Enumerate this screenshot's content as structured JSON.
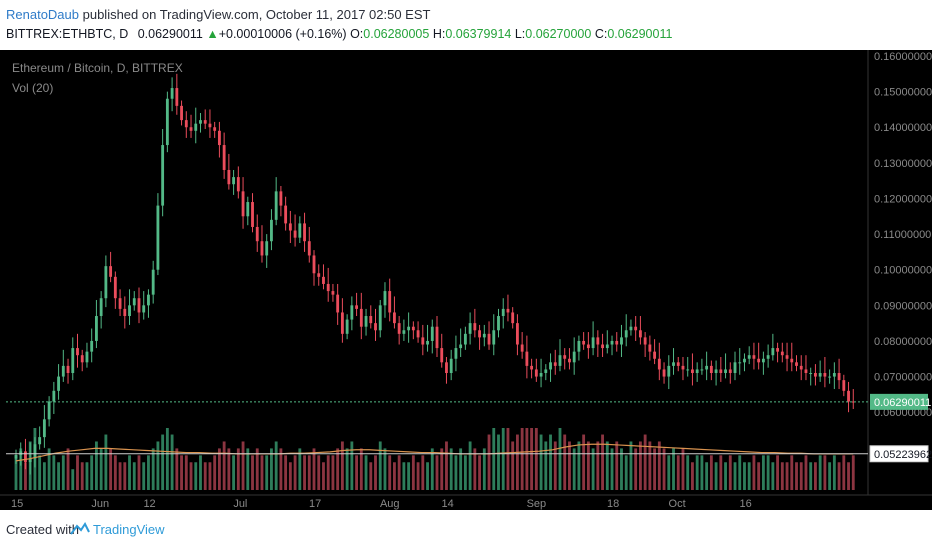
{
  "publish": {
    "author": "RenatoDaub",
    "text": " published on TradingView.com, October 11, 2017 02:50 EST"
  },
  "quote": {
    "symbol": "BITTREX:ETHBTC, D",
    "last": "0.06290011",
    "change": "+0.00010006 (+0.16%)",
    "open_label": "O:",
    "open": "0.06280005",
    "high_label": "H:",
    "high": "0.06379914",
    "low_label": "L:",
    "low": "0.06270000",
    "close_label": "C:",
    "close": "0.06290011",
    "arrow": "▲"
  },
  "legend": {
    "title": "Ethereum / Bitcoin, D, BITTREX",
    "volume": "Vol (20)"
  },
  "footer": {
    "created_with": "Created with",
    "brand": "TradingView"
  },
  "colors": {
    "background": "#000000",
    "up": "#53b987",
    "down": "#eb4d5c",
    "up_volume": "#2e7d5b",
    "down_volume": "#8c3541",
    "ma_line": "#d9934f",
    "last_price_line": "#53b987",
    "axis_text": "#8a8a8a"
  },
  "chart_data": {
    "type": "candlestick",
    "symbol": "ETH/BTC",
    "exchange": "BITTREX",
    "interval": "D",
    "ylim": [
      0.055,
      0.16
    ],
    "y_ticks": [
      "0.16000000",
      "0.15000000",
      "0.14000000",
      "0.13000000",
      "0.12000000",
      "0.11000000",
      "0.10000000",
      "0.09000000",
      "0.08000000",
      "0.07000000",
      "0.06000000"
    ],
    "x_ticks": [
      "15",
      "Jun",
      "12",
      "Jul",
      "17",
      "Aug",
      "14",
      "Sep",
      "18",
      "Oct",
      "16"
    ],
    "x_tick_dates": [
      "2017-05-15",
      "2017-06-01",
      "2017-06-12",
      "2017-07-01",
      "2017-07-17",
      "2017-08-01",
      "2017-08-14",
      "2017-09-01",
      "2017-09-18",
      "2017-10-01",
      "2017-10-16"
    ],
    "date_start": "2017-05-15",
    "last_price": 0.06290011,
    "last_price_label": "0.06290011",
    "volume_ma_label": "0.05223962",
    "grid": false,
    "closes": [
      0.048,
      0.049,
      0.046,
      0.047,
      0.051,
      0.053,
      0.058,
      0.063,
      0.066,
      0.07,
      0.073,
      0.071,
      0.078,
      0.076,
      0.074,
      0.077,
      0.08,
      0.087,
      0.092,
      0.101,
      0.098,
      0.092,
      0.089,
      0.087,
      0.09,
      0.092,
      0.088,
      0.09,
      0.093,
      0.1,
      0.118,
      0.135,
      0.148,
      0.151,
      0.146,
      0.142,
      0.14,
      0.139,
      0.141,
      0.142,
      0.141,
      0.14,
      0.139,
      0.135,
      0.128,
      0.124,
      0.126,
      0.122,
      0.115,
      0.119,
      0.112,
      0.108,
      0.104,
      0.108,
      0.114,
      0.122,
      0.118,
      0.113,
      0.111,
      0.109,
      0.113,
      0.108,
      0.104,
      0.099,
      0.098,
      0.096,
      0.094,
      0.093,
      0.088,
      0.082,
      0.086,
      0.09,
      0.089,
      0.084,
      0.087,
      0.085,
      0.083,
      0.09,
      0.094,
      0.088,
      0.085,
      0.082,
      0.083,
      0.084,
      0.083,
      0.081,
      0.079,
      0.08,
      0.084,
      0.078,
      0.074,
      0.071,
      0.075,
      0.078,
      0.079,
      0.082,
      0.085,
      0.083,
      0.081,
      0.082,
      0.079,
      0.083,
      0.087,
      0.089,
      0.088,
      0.085,
      0.079,
      0.077,
      0.073,
      0.072,
      0.07,
      0.071,
      0.072,
      0.074,
      0.073,
      0.076,
      0.075,
      0.074,
      0.077,
      0.08,
      0.079,
      0.078,
      0.081,
      0.079,
      0.078,
      0.079,
      0.08,
      0.079,
      0.081,
      0.083,
      0.084,
      0.083,
      0.081,
      0.079,
      0.077,
      0.075,
      0.072,
      0.07,
      0.073,
      0.074,
      0.073,
      0.072,
      0.072,
      0.071,
      0.072,
      0.072,
      0.073,
      0.071,
      0.072,
      0.071,
      0.072,
      0.071,
      0.074,
      0.074,
      0.075,
      0.076,
      0.075,
      0.074,
      0.075,
      0.076,
      0.078,
      0.077,
      0.076,
      0.075,
      0.074,
      0.073,
      0.072,
      0.071,
      0.071,
      0.07,
      0.071,
      0.07,
      0.07,
      0.071,
      0.069,
      0.066,
      0.063,
      0.0629
    ],
    "volume_ma": [
      0.042,
      0.045,
      0.049,
      0.053,
      0.056,
      0.058,
      0.06,
      0.06,
      0.059,
      0.058,
      0.057,
      0.056,
      0.055,
      0.054,
      0.054,
      0.053,
      0.053,
      0.052,
      0.052,
      0.052,
      0.052,
      0.053,
      0.053,
      0.054,
      0.055,
      0.057,
      0.058,
      0.058,
      0.057,
      0.056,
      0.055,
      0.054,
      0.054,
      0.053,
      0.052,
      0.052,
      0.052,
      0.053,
      0.054,
      0.055,
      0.056,
      0.058,
      0.062,
      0.065,
      0.066,
      0.066,
      0.065,
      0.064,
      0.063,
      0.062,
      0.061,
      0.06,
      0.059,
      0.058,
      0.057,
      0.056,
      0.055,
      0.054,
      0.054,
      0.053,
      0.053,
      0.052,
      0.052,
      0.052,
      0.052
    ],
    "volumes": [
      0.05,
      0.06,
      0.04,
      0.07,
      0.09,
      0.05,
      0.04,
      0.06,
      0.05,
      0.04,
      0.05,
      0.06,
      0.03,
      0.05,
      0.04,
      0.04,
      0.05,
      0.07,
      0.06,
      0.08,
      0.06,
      0.05,
      0.04,
      0.04,
      0.05,
      0.04,
      0.05,
      0.04,
      0.05,
      0.06,
      0.07,
      0.08,
      0.09,
      0.08,
      0.06,
      0.05,
      0.05,
      0.04,
      0.04,
      0.05,
      0.04,
      0.04,
      0.05,
      0.06,
      0.07,
      0.06,
      0.05,
      0.06,
      0.07,
      0.06,
      0.05,
      0.06,
      0.05,
      0.05,
      0.06,
      0.07,
      0.06,
      0.05,
      0.04,
      0.05,
      0.06,
      0.05,
      0.05,
      0.06,
      0.05,
      0.04,
      0.05,
      0.05,
      0.06,
      0.07,
      0.06,
      0.07,
      0.05,
      0.06,
      0.05,
      0.04,
      0.05,
      0.07,
      0.06,
      0.05,
      0.04,
      0.05,
      0.04,
      0.04,
      0.05,
      0.04,
      0.05,
      0.04,
      0.06,
      0.05,
      0.06,
      0.07,
      0.06,
      0.05,
      0.06,
      0.05,
      0.07,
      0.06,
      0.05,
      0.06,
      0.08,
      0.09,
      0.08,
      0.1,
      0.09,
      0.07,
      0.08,
      0.09,
      0.1,
      0.11,
      0.09,
      0.08,
      0.07,
      0.08,
      0.07,
      0.09,
      0.08,
      0.07,
      0.06,
      0.07,
      0.08,
      0.07,
      0.06,
      0.07,
      0.08,
      0.07,
      0.06,
      0.07,
      0.06,
      0.05,
      0.07,
      0.06,
      0.07,
      0.08,
      0.07,
      0.06,
      0.07,
      0.06,
      0.05,
      0.06,
      0.05,
      0.06,
      0.05,
      0.04,
      0.05,
      0.05,
      0.04,
      0.05,
      0.04,
      0.05,
      0.04,
      0.05,
      0.04,
      0.05,
      0.04,
      0.04,
      0.05,
      0.04,
      0.05,
      0.05,
      0.04,
      0.05,
      0.04,
      0.04,
      0.05,
      0.04,
      0.04,
      0.05,
      0.04,
      0.04,
      0.05,
      0.05,
      0.04,
      0.05,
      0.04,
      0.05,
      0.04,
      0.05,
      0.02
    ]
  }
}
